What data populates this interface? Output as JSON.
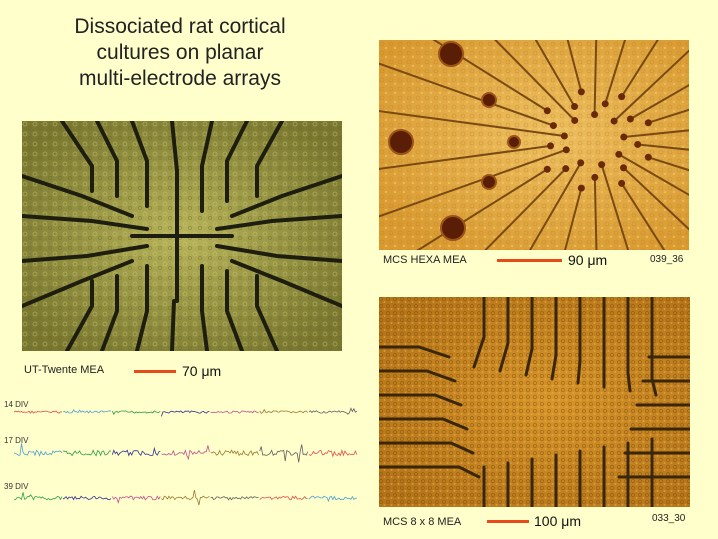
{
  "title_lines": [
    "Dissociated rat cortical",
    "cultures on planar",
    "multi-electrode arrays"
  ],
  "panels": {
    "ut_twente": {
      "caption": "UT-Twente MEA",
      "scale": "70 μm"
    },
    "hexa": {
      "caption": "MCS HEXA MEA",
      "scale": "90 μm",
      "code": "039_36"
    },
    "grid8": {
      "caption": "MCS 8 x 8 MEA",
      "scale": "100 μm",
      "code": "033_30"
    }
  },
  "traces": {
    "labels": [
      "14 DIV",
      "17 DIV",
      "39 DIV"
    ],
    "colors": [
      "#E05050",
      "#4FA0D0",
      "#2E9E4A",
      "#303090",
      "#C05090",
      "#9A7A30",
      "#606060"
    ]
  },
  "colors": {
    "background": "#FFFFCC",
    "scale_bar": "#E84A1A",
    "ut_bg": "#8C8A3A",
    "hexa_bg": "#E6A83C",
    "grid_bg": "#C8861E",
    "electrode_line": "#3A2A10"
  }
}
